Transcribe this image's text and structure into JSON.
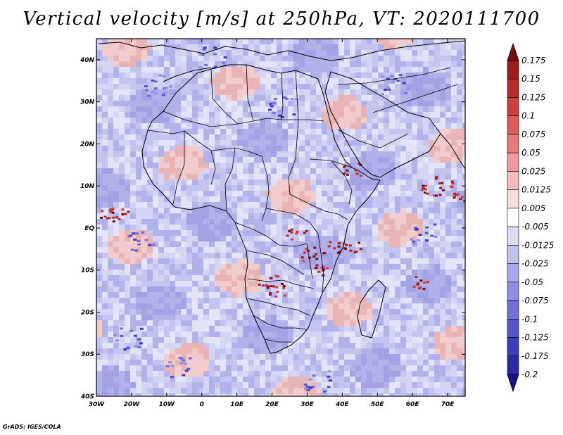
{
  "title": "Vertical velocity [m/s] at 250hPa, VT: 2020111700",
  "credit": "GrADS: IGES/COLA",
  "map": {
    "variable": "Vertical velocity",
    "units": "m/s",
    "level": "250hPa",
    "valid_time": "2020111700",
    "lon_range": [
      -30,
      75
    ],
    "lat_range": [
      -40,
      45
    ],
    "lon_ticks": [
      {
        "value": -30,
        "label": "30W"
      },
      {
        "value": -20,
        "label": "20W"
      },
      {
        "value": -10,
        "label": "10W"
      },
      {
        "value": 0,
        "label": "0"
      },
      {
        "value": 10,
        "label": "10E"
      },
      {
        "value": 20,
        "label": "20E"
      },
      {
        "value": 30,
        "label": "30E"
      },
      {
        "value": 40,
        "label": "40E"
      },
      {
        "value": 50,
        "label": "50E"
      },
      {
        "value": 60,
        "label": "60E"
      },
      {
        "value": 70,
        "label": "70E"
      }
    ],
    "lat_ticks": [
      {
        "value": 40,
        "label": "40N"
      },
      {
        "value": 30,
        "label": "30N"
      },
      {
        "value": 20,
        "label": "20N"
      },
      {
        "value": 10,
        "label": "10N"
      },
      {
        "value": 0,
        "label": "EQ"
      },
      {
        "value": -10,
        "label": "10S"
      },
      {
        "value": -20,
        "label": "20S"
      },
      {
        "value": -30,
        "label": "30S"
      },
      {
        "value": -40,
        "label": "40S"
      }
    ]
  },
  "colorbar": {
    "levels": [
      "0.175",
      "0.15",
      "0.125",
      "0.1",
      "0.075",
      "0.05",
      "0.025",
      "0.0125",
      "0.005",
      "-0.005",
      "-0.0125",
      "-0.025",
      "-0.05",
      "-0.075",
      "-0.1",
      "-0.125",
      "-0.175",
      "-0.2"
    ],
    "colors": [
      "#7a0e12",
      "#a01a1e",
      "#bd2a2a",
      "#d03e3c",
      "#dd5a58",
      "#e6797a",
      "#ee9a9a",
      "#f4bcbc",
      "#f8dcdc",
      "#ffffff",
      "#dcdcf6",
      "#c2c2ef",
      "#a8a8e8",
      "#8e8ee2",
      "#7070d8",
      "#5656cc",
      "#3c3cbe",
      "#2a2aa8",
      "#18128c"
    ]
  }
}
